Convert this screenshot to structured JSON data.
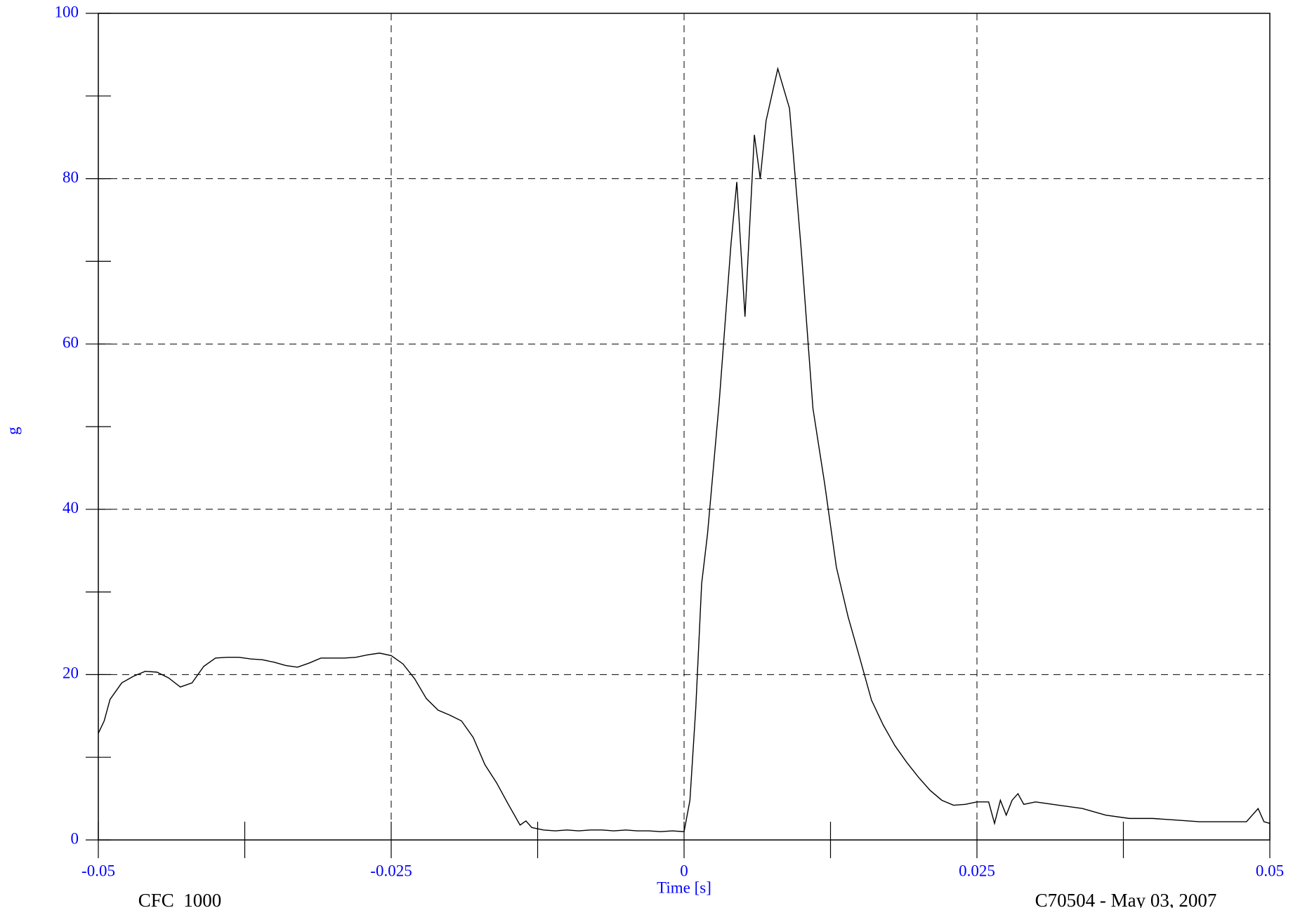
{
  "chart_data": {
    "type": "line",
    "ylabel": "g",
    "xlabel": "Time [s]",
    "footer_left": "CFC_1000",
    "footer_right": "C70504 - May 03, 2007",
    "xlim": [
      -0.05,
      0.05
    ],
    "xticks": [
      -0.05,
      -0.025,
      0,
      0.025,
      0.05
    ],
    "xminor": [
      -0.0375,
      -0.0125,
      0.0125,
      0.0375
    ],
    "ylim": [
      0,
      100
    ],
    "yticks": [
      0,
      20,
      40,
      60,
      80,
      100
    ],
    "yminor": [
      10,
      30,
      50,
      70,
      90
    ],
    "grid": true,
    "tick_color": "#0000ff",
    "color": "#000000",
    "x": [
      -0.05,
      -0.0495,
      -0.049,
      -0.048,
      -0.047,
      -0.046,
      -0.045,
      -0.044,
      -0.043,
      -0.042,
      -0.041,
      -0.04,
      -0.039,
      -0.038,
      -0.037,
      -0.036,
      -0.035,
      -0.034,
      -0.033,
      -0.032,
      -0.031,
      -0.03,
      -0.029,
      -0.028,
      -0.027,
      -0.026,
      -0.025,
      -0.024,
      -0.023,
      -0.022,
      -0.021,
      -0.02,
      -0.019,
      -0.018,
      -0.017,
      -0.016,
      -0.015,
      -0.014,
      -0.0135,
      -0.013,
      -0.012,
      -0.011,
      -0.01,
      -0.009,
      -0.008,
      -0.007,
      -0.006,
      -0.005,
      -0.004,
      -0.003,
      -0.002,
      -0.001,
      0,
      0.0005,
      0.001,
      0.0015,
      0.002,
      0.003,
      0.004,
      0.0045,
      0.005,
      0.0052,
      0.006,
      0.0065,
      0.007,
      0.008,
      0.009,
      0.01,
      0.011,
      0.012,
      0.013,
      0.014,
      0.015,
      0.016,
      0.017,
      0.018,
      0.019,
      0.02,
      0.021,
      0.022,
      0.023,
      0.024,
      0.025,
      0.026,
      0.0265,
      0.027,
      0.0275,
      0.028,
      0.0285,
      0.029,
      0.03,
      0.032,
      0.034,
      0.036,
      0.038,
      0.04,
      0.042,
      0.044,
      0.046,
      0.048,
      0.049,
      0.0495,
      0.05
    ],
    "values": [
      12.9,
      14.4,
      17,
      19,
      19.8,
      20.4,
      20.3,
      19.6,
      18.5,
      19,
      21,
      22,
      22.1,
      22.1,
      21.9,
      21.8,
      21.5,
      21.1,
      20.9,
      21.4,
      22,
      22,
      22,
      22.1,
      22.4,
      22.6,
      22.3,
      21.3,
      19.5,
      17.1,
      15.7,
      15.1,
      14.4,
      12.4,
      9.1,
      6.9,
      4.3,
      1.8,
      2.3,
      1.5,
      1.2,
      1.1,
      1.2,
      1.1,
      1.2,
      1.2,
      1.1,
      1.2,
      1.1,
      1.1,
      1,
      1.1,
      1,
      4.8,
      16,
      31,
      37,
      53,
      72,
      79.6,
      68,
      63.3,
      85.3,
      80,
      87,
      93.3,
      88.5,
      71.4,
      52.2,
      43.1,
      33,
      27,
      22,
      16.9,
      13.9,
      11.4,
      9.4,
      7.6,
      6,
      4.8,
      4.2,
      4.3,
      4.6,
      4.6,
      2,
      4.8,
      3,
      4.8,
      5.6,
      4.3,
      4.6,
      4.2,
      3.8,
      3,
      2.6,
      2.6,
      2.4,
      2.2,
      2.2,
      2.2,
      3.8,
      2.2,
      2
    ]
  }
}
